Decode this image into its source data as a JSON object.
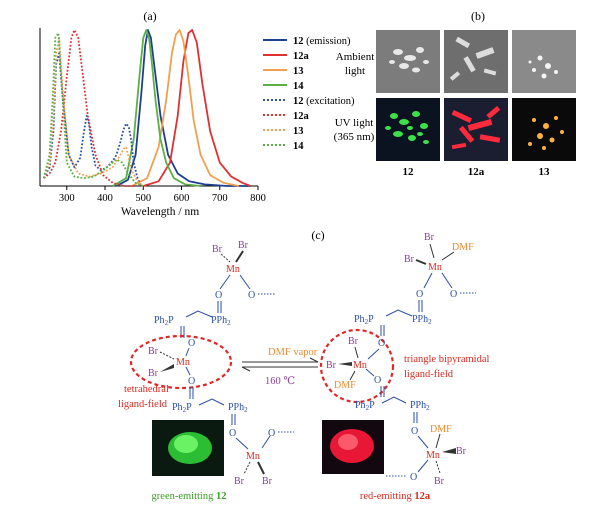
{
  "panel_labels": {
    "a": "(a)",
    "b": "(b)",
    "c": "(c)"
  },
  "chart_data": {
    "type": "line",
    "title": "",
    "xlabel": "Wavelength / nm",
    "ylabel": "",
    "xlim": [
      230,
      800
    ],
    "ylim": [
      0,
      1
    ],
    "xticks": [
      300,
      400,
      500,
      600,
      700,
      800
    ],
    "grid": false,
    "legend_position": "right",
    "series": [
      {
        "name": "12",
        "suffix": " (emission)",
        "color": "#1f3f8f",
        "dash": false,
        "x": [
          430,
          460,
          480,
          495,
          505,
          512,
          520,
          530,
          545,
          565,
          590,
          620,
          660,
          720,
          780
        ],
        "y": [
          0,
          0.04,
          0.2,
          0.6,
          0.9,
          1.0,
          0.95,
          0.75,
          0.45,
          0.2,
          0.08,
          0.03,
          0.01,
          0,
          0
        ]
      },
      {
        "name": "12a",
        "suffix": "",
        "color": "#e03030",
        "dash": false,
        "x": [
          500,
          540,
          570,
          590,
          605,
          618,
          628,
          640,
          655,
          675,
          700,
          730,
          760,
          780
        ],
        "y": [
          0,
          0.03,
          0.15,
          0.45,
          0.8,
          0.98,
          1.0,
          0.92,
          0.65,
          0.35,
          0.15,
          0.06,
          0.02,
          0
        ]
      },
      {
        "name": "13",
        "suffix": "",
        "color": "#f0a050",
        "dash": false,
        "x": [
          470,
          510,
          540,
          560,
          575,
          585,
          595,
          605,
          618,
          632,
          650,
          675,
          710,
          750
        ],
        "y": [
          0,
          0.05,
          0.25,
          0.55,
          0.85,
          0.97,
          1.0,
          0.93,
          0.7,
          0.42,
          0.2,
          0.07,
          0.02,
          0
        ]
      },
      {
        "name": "14",
        "suffix": "",
        "color": "#59b045",
        "dash": false,
        "x": [
          420,
          455,
          475,
          490,
          500,
          508,
          515,
          522,
          532,
          545,
          560,
          580,
          610,
          650
        ],
        "y": [
          0,
          0.05,
          0.3,
          0.7,
          0.95,
          1.0,
          0.95,
          0.8,
          0.55,
          0.3,
          0.15,
          0.05,
          0.01,
          0
        ]
      },
      {
        "name": "12",
        "suffix": " (excitation)",
        "color": "#2b50b0",
        "dash": true,
        "x": [
          240,
          255,
          265,
          272,
          280,
          290,
          305,
          320,
          335,
          345,
          352,
          358,
          365,
          375,
          390,
          405,
          420,
          430,
          440,
          448,
          455,
          462,
          468,
          475,
          485,
          495
        ],
        "y": [
          0.05,
          0.12,
          0.35,
          0.78,
          0.85,
          0.55,
          0.2,
          0.12,
          0.18,
          0.35,
          0.45,
          0.4,
          0.25,
          0.13,
          0.1,
          0.12,
          0.16,
          0.2,
          0.28,
          0.36,
          0.4,
          0.38,
          0.3,
          0.15,
          0.05,
          0
        ]
      },
      {
        "name": "12a",
        "suffix": "",
        "color": "#e03030",
        "dash": true,
        "x": [
          240,
          255,
          270,
          285,
          300,
          312,
          320,
          330,
          340,
          355,
          375,
          395,
          420,
          450,
          480
        ],
        "y": [
          0.05,
          0.08,
          0.15,
          0.35,
          0.7,
          0.95,
          1.0,
          0.95,
          0.75,
          0.45,
          0.2,
          0.07,
          0.02,
          0,
          0
        ]
      },
      {
        "name": "13",
        "suffix": "",
        "color": "#f0a050",
        "dash": true,
        "x": [
          240,
          255,
          265,
          272,
          280,
          290,
          305,
          330,
          360,
          390,
          420,
          440,
          450,
          455,
          460,
          470,
          485,
          500
        ],
        "y": [
          0.05,
          0.15,
          0.45,
          0.85,
          0.95,
          0.6,
          0.2,
          0.08,
          0.06,
          0.08,
          0.12,
          0.2,
          0.24,
          0.25,
          0.2,
          0.1,
          0.03,
          0
        ]
      },
      {
        "name": "14",
        "suffix": "",
        "color": "#59b045",
        "dash": true,
        "x": [
          240,
          255,
          263,
          270,
          278,
          288,
          300,
          320,
          345,
          370,
          395,
          415,
          430,
          445,
          460,
          480,
          500
        ],
        "y": [
          0.05,
          0.2,
          0.55,
          0.95,
          0.98,
          0.6,
          0.15,
          0.06,
          0.05,
          0.06,
          0.1,
          0.14,
          0.17,
          0.15,
          0.08,
          0.02,
          0
        ]
      }
    ]
  },
  "photos": {
    "ambient_label_1": "Ambient",
    "ambient_label_2": "light",
    "uv_label_1": "UV light",
    "uv_label_2": "(365 nm)",
    "captions": [
      "12",
      "12a",
      "13"
    ]
  },
  "scheme": {
    "br": "Br",
    "mn": "Mn",
    "o": "O",
    "p": "P",
    "pph2": "PPh",
    "ph2": "Ph",
    "sub2": "2",
    "dmf": "DMF",
    "arrow_top": "DMF vapor",
    "arrow_bottom": "160 ℃",
    "left_field_1": "tetrahedral",
    "left_field_2": "ligand-field",
    "right_field_1": "triangle bipyramidal",
    "right_field_2": "ligand-field",
    "caption_left_prefix": "green-emitting ",
    "caption_left_num": "12",
    "caption_right_prefix": "red-emitting ",
    "caption_right_num": "12a",
    "colors": {
      "ligand": "#2a4fa8",
      "mn": "#d82a20",
      "br": "#8a3f9a",
      "dmf": "#ee8a30",
      "green": "#3a9f28"
    }
  }
}
